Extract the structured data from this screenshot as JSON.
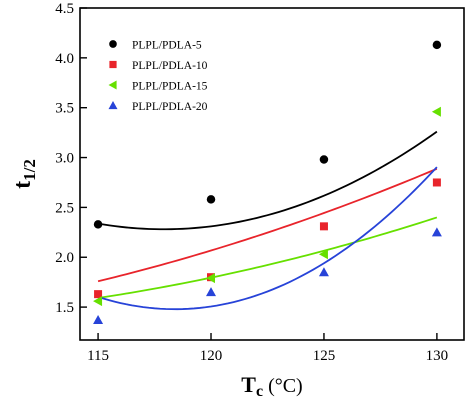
{
  "chart_data": {
    "type": "scatter",
    "xlabel_main": "T",
    "xlabel_sub": "c",
    "xlabel_unit": " (°C)",
    "ylabel_main": "t",
    "ylabel_sub": "1/2",
    "xlim": [
      114.2,
      131.2
    ],
    "ylim": [
      1.17,
      4.5
    ],
    "xticks": [
      115,
      120,
      125,
      130
    ],
    "yticks": [
      1.5,
      2.0,
      2.5,
      3.0,
      3.5,
      4.0,
      4.5
    ],
    "ytick_labels": [
      "1.5",
      "2.0",
      "2.5",
      "3.0",
      "3.5",
      "4.0",
      "4.5"
    ],
    "xtick_labels": [
      "115",
      "120",
      "125",
      "130"
    ],
    "legend_position": "top-left",
    "x": [
      115,
      120,
      125,
      130
    ],
    "series": [
      {
        "name": "PLPL/PDLA-5",
        "marker": "circle",
        "color": "#000000",
        "values": [
          2.33,
          2.58,
          2.98,
          4.13
        ],
        "fit": [
          0.0067,
          -1.58,
          95.43
        ]
      },
      {
        "name": "PLPL/PDLA-10",
        "marker": "square",
        "color": "#e8242b",
        "values": [
          1.63,
          1.8,
          2.31,
          2.75
        ],
        "fit": [
          0.00135,
          -0.2555,
          13.2875
        ]
      },
      {
        "name": "PLPL/PDLA-15",
        "marker": "triangle-left",
        "color": "#66e000",
        "values": [
          1.56,
          1.79,
          2.03,
          3.46
        ],
        "fit": [
          0.0013,
          -0.2646,
          14.8275
        ]
      },
      {
        "name": "PLPL/PDLA-20",
        "marker": "triangle-up",
        "color": "#2743d8",
        "values": [
          1.37,
          1.65,
          1.85,
          2.25
        ],
        "fit": [
          0.0106,
          -2.5102,
          150.09
        ]
      }
    ]
  }
}
